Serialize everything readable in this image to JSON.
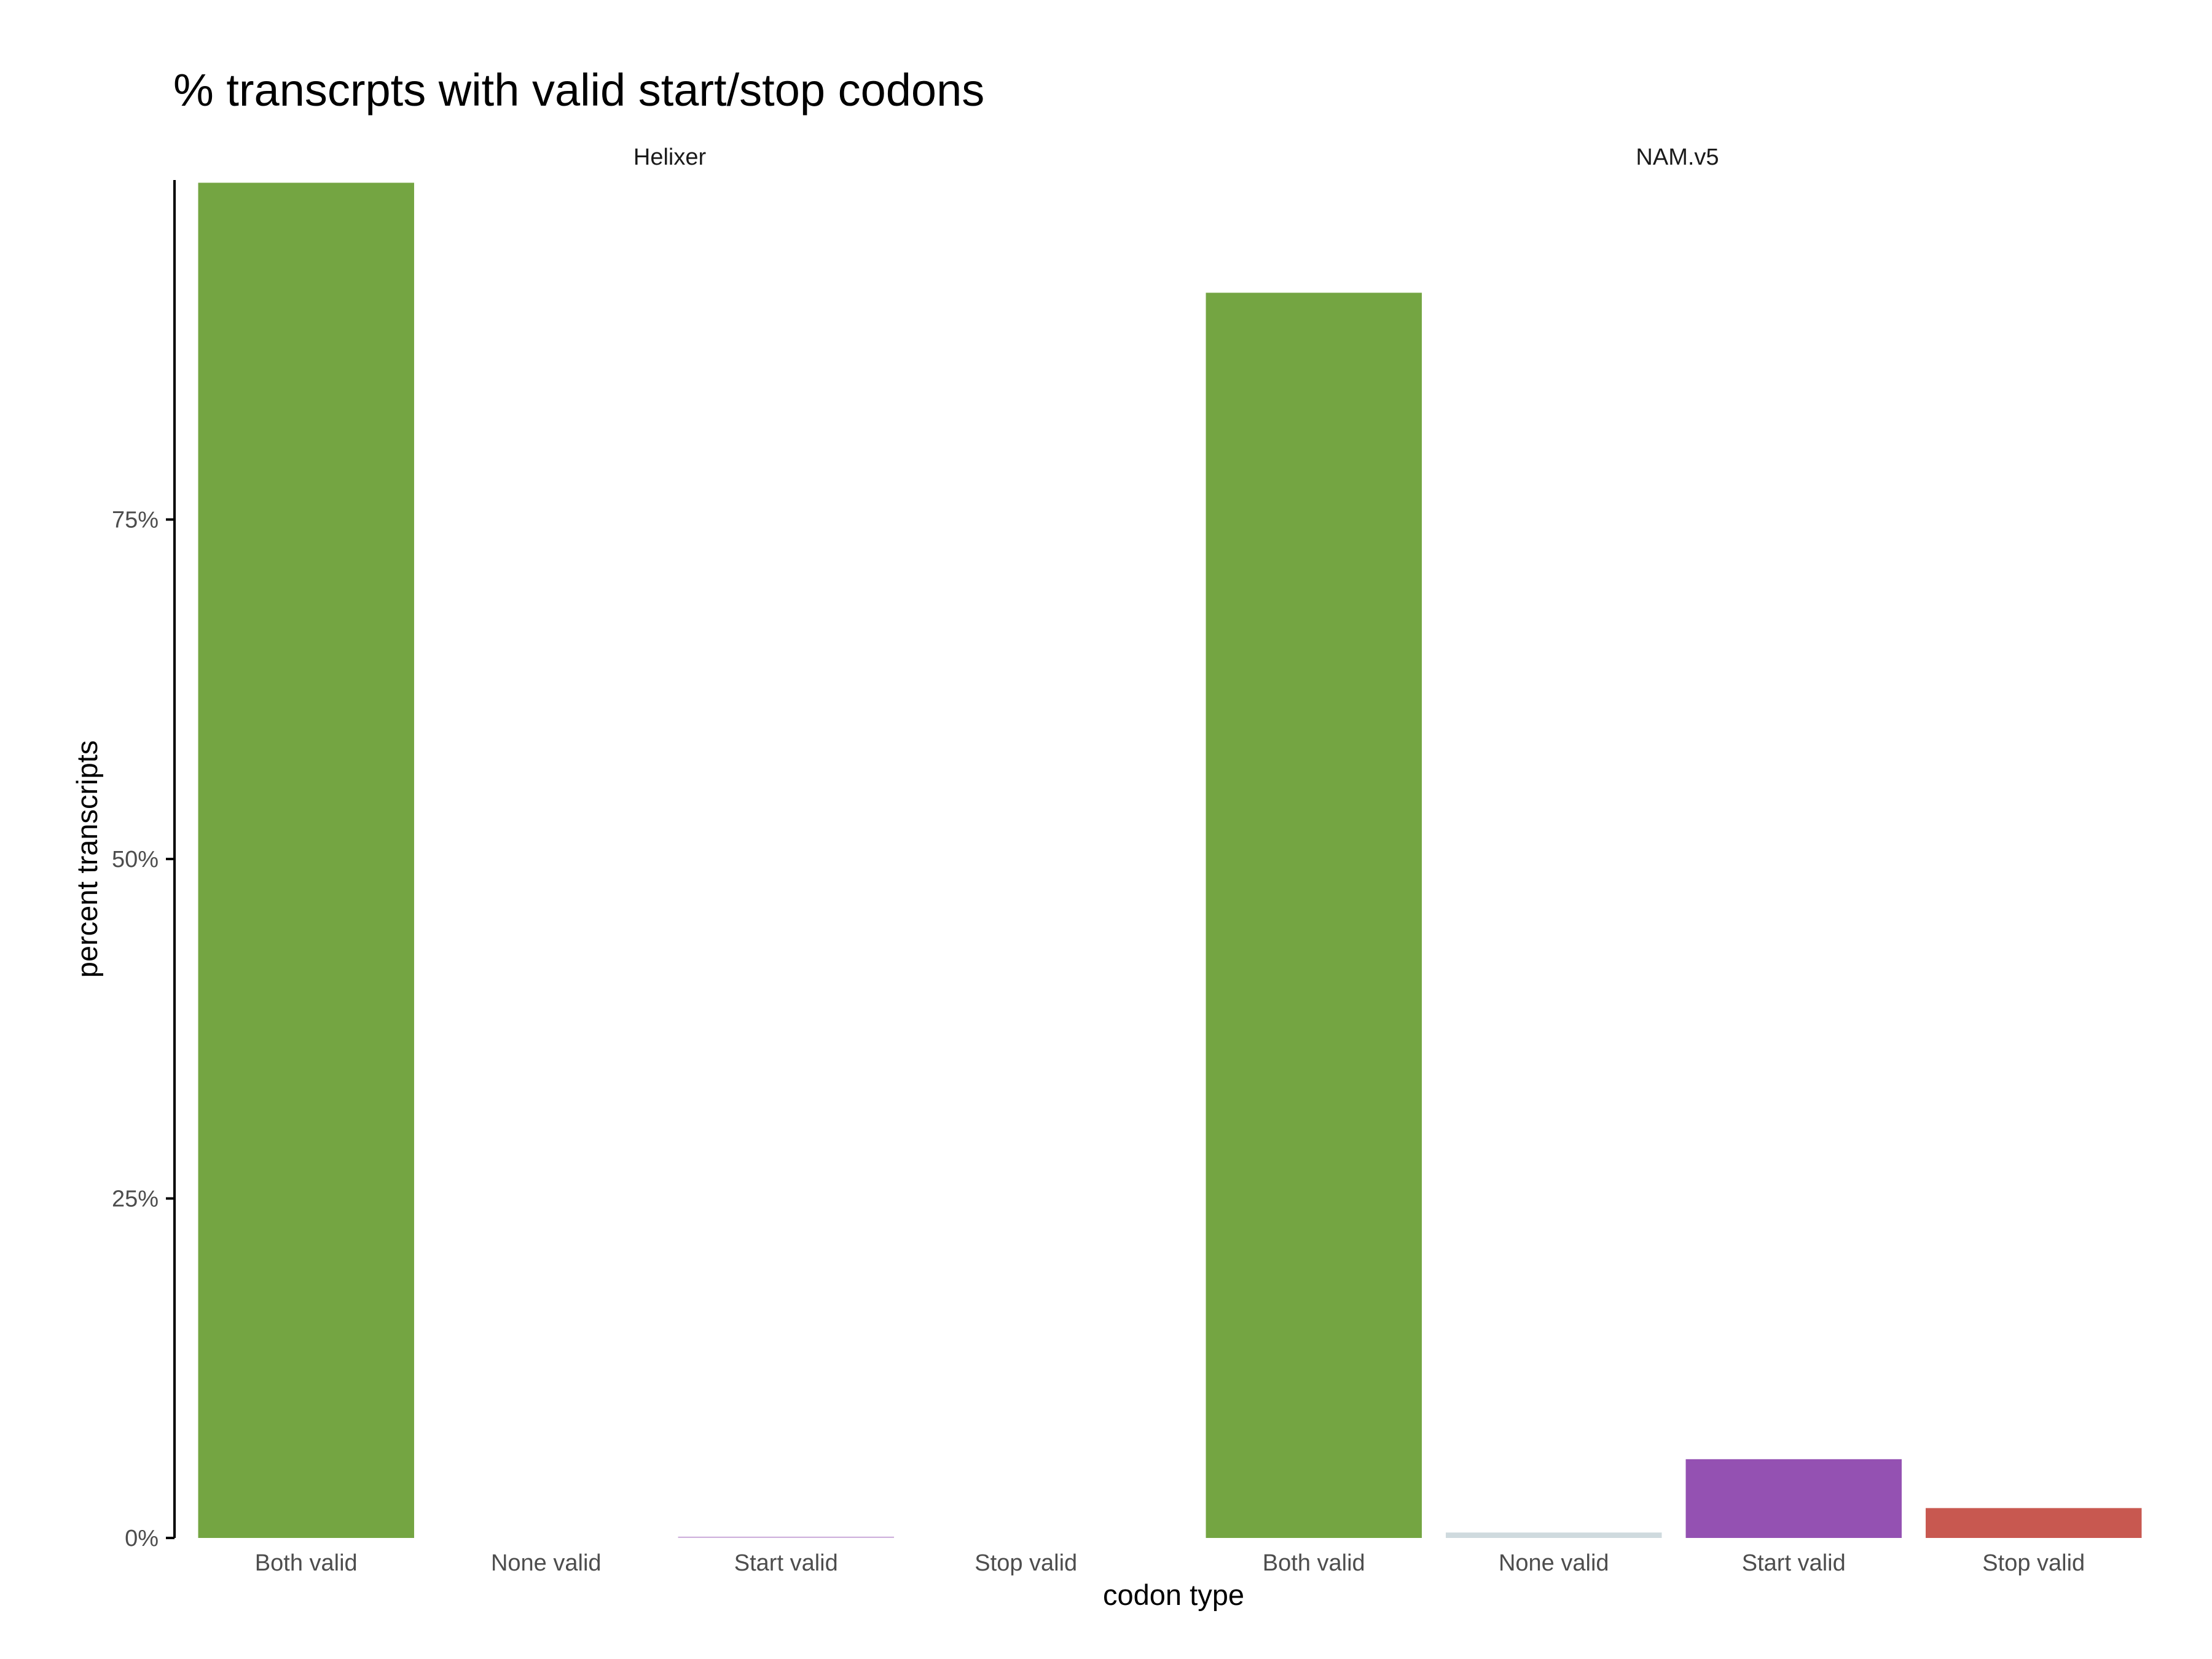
{
  "chart_data": {
    "type": "bar",
    "title": "% transcrpts with valid start/stop codons",
    "xlabel": "codon type",
    "ylabel": "percent transcripts",
    "ylim": [
      0,
      100
    ],
    "yticks": [
      0,
      25,
      50,
      75
    ],
    "ytick_labels": [
      "0%",
      "25%",
      "50%",
      "75%"
    ],
    "grid": false,
    "legend": "none",
    "categories": [
      "Both valid",
      "None valid",
      "Start valid",
      "Stop valid"
    ],
    "facets": [
      {
        "name": "Helixer",
        "values": [
          99.8,
          0.0,
          0.1,
          0.0
        ]
      },
      {
        "name": "NAM.v5",
        "values": [
          91.7,
          0.4,
          5.8,
          2.2
        ]
      }
    ],
    "colors": {
      "Both valid": "#74a542",
      "None valid": "#94adb5",
      "Start valid": "#9451b2",
      "Stop valid": "#c85850"
    }
  }
}
